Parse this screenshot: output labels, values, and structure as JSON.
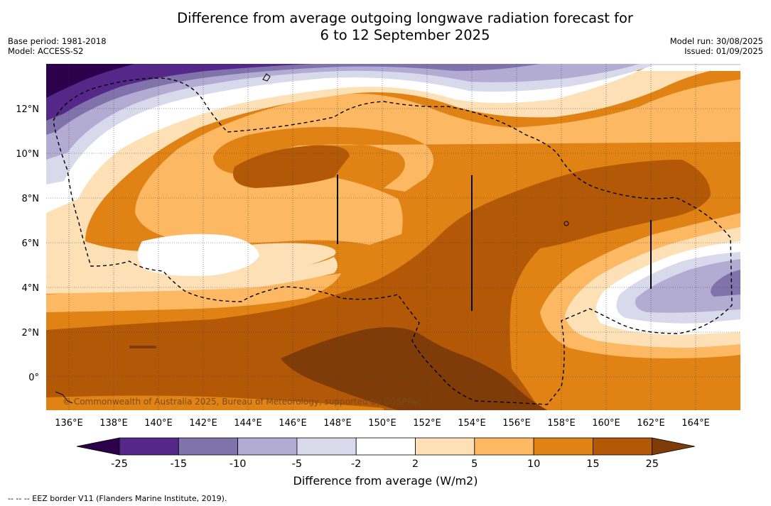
{
  "header": {
    "title_line1": "Difference from average outgoing longwave radiation forecast for",
    "title_line2": "6 to 12 September 2025",
    "base_period": "Base period: 1981-2018",
    "model": "Model: ACCESS-S2",
    "model_run": "Model run: 30/08/2025",
    "issued": "Issued: 01/09/2025"
  },
  "map": {
    "lon_labels": [
      "136°E",
      "138°E",
      "140°E",
      "142°E",
      "144°E",
      "146°E",
      "148°E",
      "150°E",
      "152°E",
      "154°E",
      "156°E",
      "158°E",
      "160°E",
      "162°E",
      "164°E"
    ],
    "lat_labels": [
      "12°N",
      "10°N",
      "8°N",
      "6°N",
      "4°N",
      "2°N",
      "0°"
    ],
    "copyright": "© Commonwealth of Australia 2025, Bureau of Meteorology, supported by COSPPac"
  },
  "colorbar": {
    "title": "Difference from average (W/m2)",
    "tick_labels": [
      "-25",
      "-15",
      "-10",
      "-5",
      "-2",
      "2",
      "5",
      "10",
      "15",
      "25"
    ],
    "colors": [
      "#2d004b",
      "#542788",
      "#8073ac",
      "#b2abd2",
      "#d8daeb",
      "#ffffff",
      "#fee0b6",
      "#fdb863",
      "#e08214",
      "#b35806",
      "#7f3b08"
    ]
  },
  "footnote": "--  --  -- EEZ border V11 (Flanders Marine Institute, 2019)."
}
